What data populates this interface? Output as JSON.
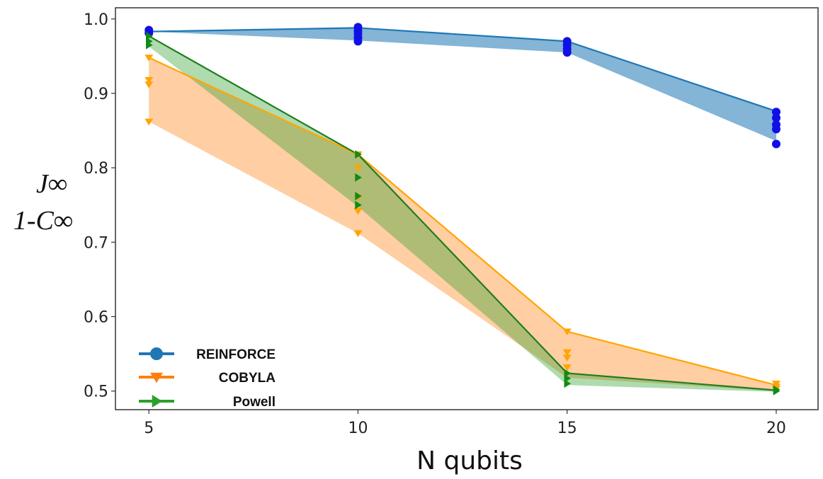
{
  "chart_data": {
    "type": "line",
    "xlabel": "N qubits",
    "ylabel_lines": [
      "J∞",
      "1-C∞"
    ],
    "x_ticks": [
      "5",
      "10",
      "15",
      "20"
    ],
    "y_ticks": [
      "0.5",
      "0.6",
      "0.7",
      "0.8",
      "0.9",
      "1.0"
    ],
    "xlim": [
      4.2,
      21.0
    ],
    "ylim": [
      0.475,
      1.015
    ],
    "grid": false,
    "legend_position": "lower-left",
    "series": [
      {
        "name": "REINFORCE",
        "color": "#1f77b4",
        "marker_color": "#1010e6",
        "marker": "circle",
        "x": [
          5,
          10,
          15,
          20
        ],
        "mean": [
          0.983,
          0.988,
          0.97,
          0.876
        ],
        "band_upper": [
          0.983,
          0.988,
          0.97,
          0.876
        ],
        "band_lower": [
          0.983,
          0.971,
          0.955,
          0.836
        ],
        "points": [
          [
            5,
            0.985
          ],
          [
            5,
            0.981
          ],
          [
            10,
            0.989
          ],
          [
            10,
            0.984
          ],
          [
            10,
            0.98
          ],
          [
            10,
            0.975
          ],
          [
            10,
            0.97
          ],
          [
            15,
            0.97
          ],
          [
            15,
            0.965
          ],
          [
            15,
            0.96
          ],
          [
            15,
            0.955
          ],
          [
            20,
            0.875
          ],
          [
            20,
            0.867
          ],
          [
            20,
            0.858
          ],
          [
            20,
            0.852
          ],
          [
            20,
            0.832
          ]
        ]
      },
      {
        "name": "COBYLA",
        "color": "#ff7f0e",
        "line_color": "#ffa500",
        "marker_color": "#ffa500",
        "marker": "triangle-down",
        "x": [
          5,
          10,
          15,
          20
        ],
        "mean": [
          0.948,
          0.818,
          0.58,
          0.508
        ],
        "band_upper": [
          0.948,
          0.818,
          0.58,
          0.508
        ],
        "band_lower": [
          0.862,
          0.712,
          0.518,
          0.5
        ],
        "points": [
          [
            5,
            0.948
          ],
          [
            5,
            0.918
          ],
          [
            5,
            0.912
          ],
          [
            5,
            0.862
          ],
          [
            10,
            0.818
          ],
          [
            10,
            0.8
          ],
          [
            10,
            0.76
          ],
          [
            10,
            0.742
          ],
          [
            10,
            0.712
          ],
          [
            15,
            0.58
          ],
          [
            15,
            0.552
          ],
          [
            15,
            0.545
          ],
          [
            15,
            0.532
          ],
          [
            20,
            0.51
          ],
          [
            20,
            0.506
          ],
          [
            20,
            0.503
          ]
        ]
      },
      {
        "name": "Powell",
        "color": "#2ca02c",
        "line_color": "#1e7d1e",
        "marker_color": "#138a13",
        "marker": "triangle-right",
        "x": [
          5,
          10,
          15,
          20
        ],
        "mean": [
          0.977,
          0.818,
          0.524,
          0.501
        ],
        "band_upper": [
          0.977,
          0.818,
          0.524,
          0.501
        ],
        "band_lower": [
          0.963,
          0.748,
          0.508,
          0.499
        ],
        "points": [
          [
            5,
            0.977
          ],
          [
            5,
            0.97
          ],
          [
            5,
            0.965
          ],
          [
            10,
            0.818
          ],
          [
            10,
            0.787
          ],
          [
            10,
            0.762
          ],
          [
            10,
            0.75
          ],
          [
            15,
            0.524
          ],
          [
            15,
            0.517
          ],
          [
            15,
            0.51
          ],
          [
            20,
            0.502
          ],
          [
            20,
            0.5
          ]
        ]
      }
    ]
  }
}
